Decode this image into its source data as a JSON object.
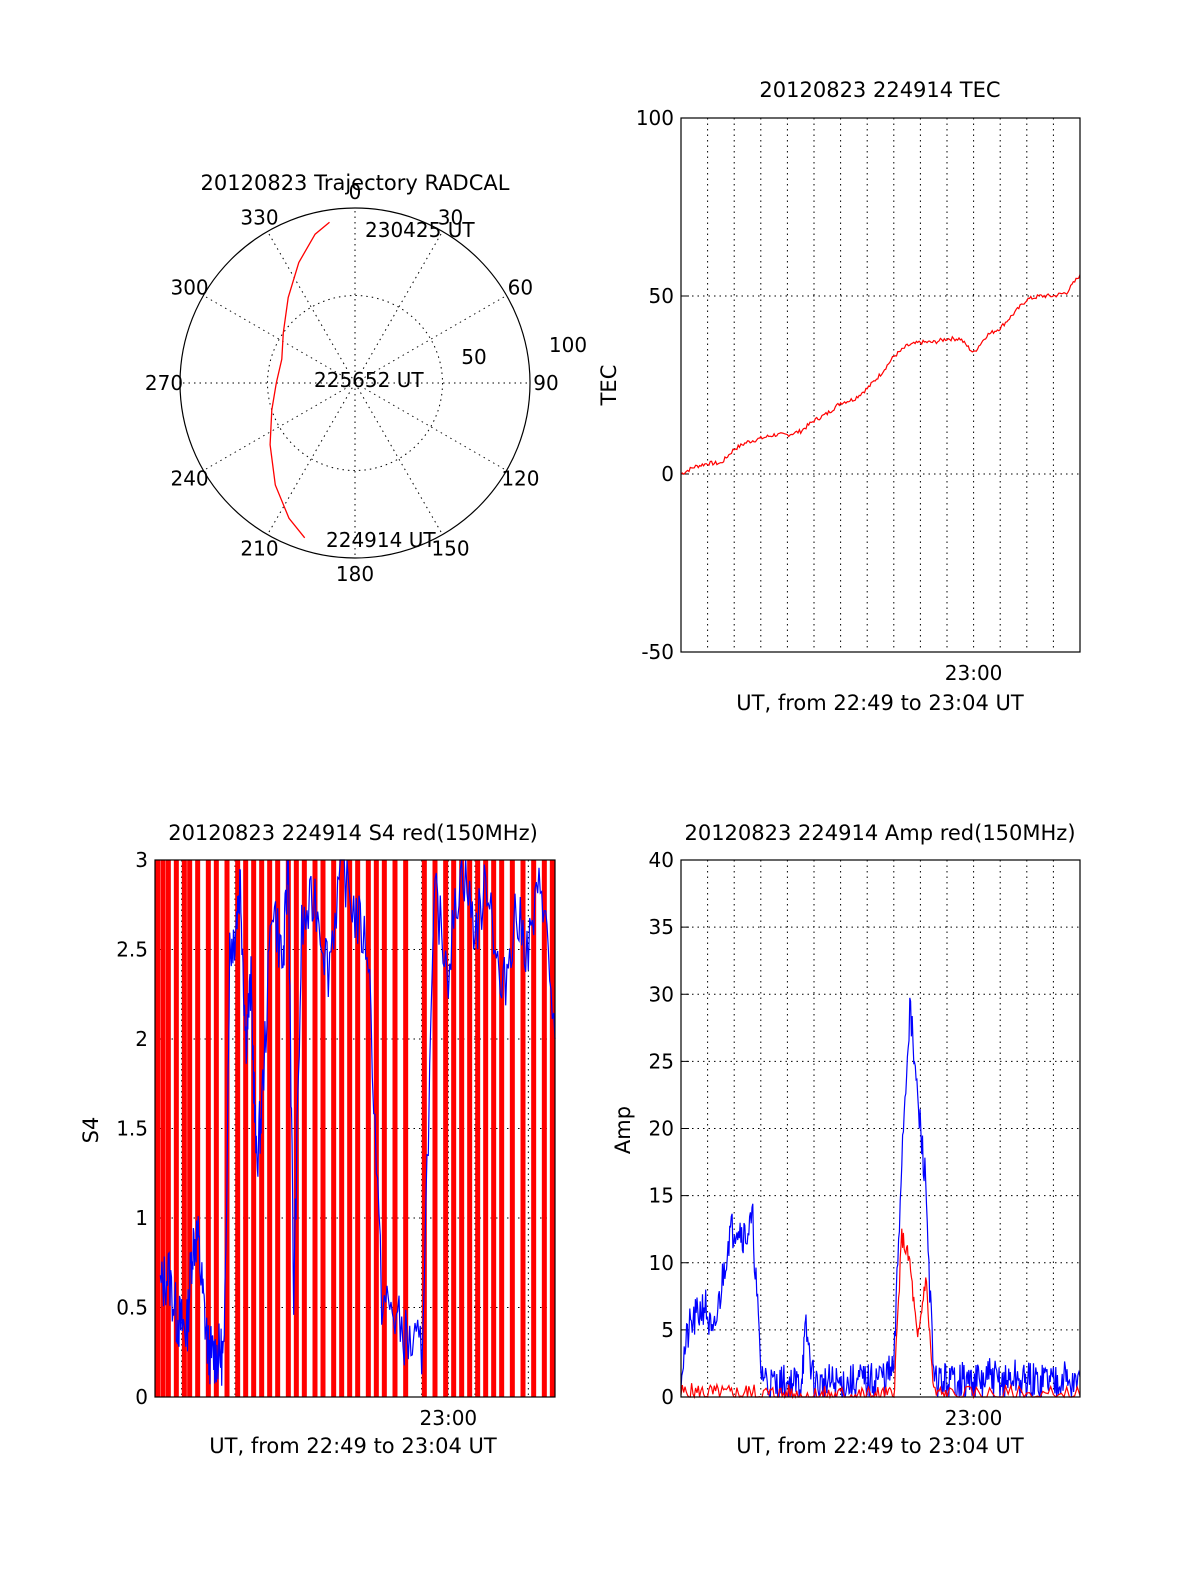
{
  "colors": {
    "red": "#ff0000",
    "blue": "#0000ff",
    "axis": "#000000",
    "background": "#ffffff"
  },
  "chart_data": [
    {
      "type": "polar",
      "title": "20120823 Trajectory RADCAL",
      "angle_labels": [
        "0",
        "30",
        "60",
        "90",
        "120",
        "150",
        "180",
        "210",
        "240",
        "270",
        "300",
        "330"
      ],
      "radius_labels": [
        "50",
        "100"
      ],
      "rlim": [
        0,
        100
      ],
      "grid": true,
      "trajectory_labels": {
        "start": "224914 UT",
        "mid": "225652 UT",
        "end": "230425 UT"
      },
      "series": [
        {
          "color": "red",
          "points": [
            {
              "az": 198,
              "r": 93
            },
            {
              "az": 206,
              "r": 86
            },
            {
              "az": 218,
              "r": 74
            },
            {
              "az": 234,
              "r": 60
            },
            {
              "az": 252,
              "r": 50
            },
            {
              "az": 270,
              "r": 45
            },
            {
              "az": 288,
              "r": 44
            },
            {
              "az": 305,
              "r": 50
            },
            {
              "az": 322,
              "r": 62
            },
            {
              "az": 335,
              "r": 76
            },
            {
              "az": 345,
              "r": 88
            },
            {
              "az": 351,
              "r": 93
            }
          ]
        }
      ]
    },
    {
      "type": "line",
      "title": "20120823 224914 TEC",
      "xlabel": "UT, from 22:49 to 23:04 UT",
      "ylabel": "TEC",
      "xlim": [
        0,
        15
      ],
      "ylim": [
        -50,
        100
      ],
      "yticks": [
        "-50",
        "0",
        "50",
        "100"
      ],
      "xticks": [
        {
          "label": "23:00",
          "at": 11
        }
      ],
      "grid": true,
      "series": [
        {
          "color": "red",
          "x": [
            0,
            0.5,
            1,
            1.5,
            2,
            2.5,
            3,
            3.5,
            4,
            4.5,
            5,
            5.5,
            6,
            6.5,
            7,
            7.5,
            8,
            8.5,
            9,
            9.5,
            10,
            10.5,
            11,
            11.5,
            12,
            12.5,
            13,
            13.5,
            14,
            14.5,
            15
          ],
          "y": [
            0,
            2,
            3,
            3,
            7,
            9,
            10,
            11,
            11,
            12,
            15,
            17,
            20,
            21,
            24,
            28,
            33,
            36,
            37,
            37,
            38,
            38,
            34,
            39,
            41,
            45,
            49,
            50,
            50,
            51,
            56
          ]
        }
      ]
    },
    {
      "type": "line",
      "title": "20120823 224914 S4 red(150MHz)",
      "xlabel": "UT, from 22:49 to 23:04 UT",
      "ylabel": "S4",
      "xlim": [
        0,
        15
      ],
      "ylim": [
        0,
        3
      ],
      "yticks": [
        "0",
        "0.5",
        "1",
        "1.5",
        "2",
        "2.5",
        "3"
      ],
      "xticks": [
        {
          "label": "23:00",
          "at": 11
        }
      ],
      "grid": true,
      "series": [
        {
          "color": "red",
          "name": "red(150MHz)",
          "x": [
            0.1,
            0.3,
            0.5,
            0.8,
            1.1,
            1.3,
            1.6,
            2.0,
            2.3,
            2.7,
            3.1,
            3.4,
            3.7,
            4.0,
            4.3,
            4.6,
            5.0,
            5.3,
            5.6,
            6.0,
            6.3,
            6.7,
            7.0,
            7.3,
            7.6,
            8.0,
            8.3,
            8.6,
            9.0,
            9.4,
            10.1,
            10.5,
            10.9,
            11.2,
            11.5,
            11.8,
            12.1,
            12.4,
            12.7,
            13.0,
            13.4,
            13.8,
            14.2,
            14.6,
            14.9
          ],
          "y": [
            3,
            3,
            3,
            3,
            3,
            3,
            3,
            3,
            3,
            3,
            3,
            3,
            3,
            3,
            3,
            3,
            3,
            3,
            3,
            3,
            3,
            3,
            3,
            3,
            3,
            3,
            3,
            3,
            3,
            3,
            3,
            3,
            3,
            3,
            3,
            3,
            3,
            3,
            3,
            3,
            3,
            3,
            3,
            3,
            3
          ]
        },
        {
          "color": "blue",
          "name": "blue",
          "x": [
            0.2,
            0.5,
            0.8,
            1.0,
            1.2,
            1.4,
            1.6,
            1.8,
            2.0,
            2.2,
            2.4,
            2.6,
            2.8,
            3.0,
            3.2,
            3.4,
            3.6,
            3.8,
            4.0,
            4.4,
            4.8,
            5.0,
            5.2,
            5.5,
            6.0,
            6.5,
            7.0,
            7.5,
            8.0,
            8.5,
            9.0,
            9.5,
            10.0,
            10.5,
            11.0,
            11.5,
            12.0,
            12.5,
            13.0,
            13.5,
            14.0,
            14.5,
            15.0
          ],
          "y": [
            0.6,
            0.7,
            0.45,
            0.4,
            0.38,
            0.85,
            0.9,
            0.55,
            0.25,
            0.23,
            0.24,
            0.23,
            2.5,
            2.6,
            2.9,
            2.0,
            2.3,
            1.3,
            1.6,
            2.8,
            2.4,
            3.0,
            0.55,
            2.6,
            2.8,
            2.4,
            3.0,
            2.7,
            2.5,
            0.55,
            0.45,
            0.3,
            0.25,
            2.8,
            2.4,
            3.0,
            2.6,
            2.9,
            2.2,
            2.7,
            2.5,
            2.9,
            2.0
          ]
        }
      ]
    },
    {
      "type": "line",
      "title": "20120823 224914 Amp red(150MHz)",
      "xlabel": "UT, from 22:49 to 23:04 UT",
      "ylabel": "Amp",
      "xlim": [
        0,
        15
      ],
      "ylim": [
        0,
        40
      ],
      "yticks": [
        "0",
        "5",
        "10",
        "15",
        "20",
        "25",
        "30",
        "35",
        "40"
      ],
      "xticks": [
        {
          "label": "23:00",
          "at": 11
        }
      ],
      "grid": true,
      "series": [
        {
          "color": "blue",
          "name": "blue",
          "x": [
            0,
            0.3,
            0.6,
            0.9,
            1.2,
            1.5,
            1.8,
            2.1,
            2.4,
            2.7,
            3.0,
            3.3,
            3.6,
            3.9,
            4.2,
            4.5,
            4.7,
            5.0,
            5.3,
            5.6,
            5.9,
            6.2,
            6.5,
            6.8,
            7.1,
            7.4,
            7.7,
            8.0,
            8.3,
            8.6,
            8.9,
            9.2,
            9.5,
            9.8,
            10.1,
            10.4,
            10.7,
            11.0,
            11.3,
            11.6,
            11.9,
            12.2,
            12.5,
            12.8,
            13.1,
            13.4,
            13.7,
            14.0,
            14.3,
            14.6,
            15.0
          ],
          "y": [
            2,
            5,
            6,
            7,
            4,
            8,
            12,
            13,
            12,
            13,
            2,
            1,
            0.8,
            1,
            0.9,
            1,
            5,
            1,
            0.8,
            1,
            0.9,
            1,
            1,
            1.2,
            1,
            1.5,
            1.5,
            2,
            18,
            29,
            22,
            16,
            1,
            1.2,
            1,
            1.5,
            1,
            1.2,
            1,
            1.5,
            1.2,
            1,
            1.5,
            1,
            1.2,
            1,
            1.5,
            1.2,
            1.8,
            1,
            1.5
          ]
        },
        {
          "color": "red",
          "name": "red(150MHz)",
          "x": [
            0,
            0.5,
            1,
            1.5,
            2,
            2.5,
            3,
            3.5,
            4,
            4.5,
            5,
            5.5,
            6,
            6.5,
            7,
            7.5,
            8,
            8.3,
            8.6,
            8.9,
            9.2,
            9.5,
            10,
            11,
            12,
            13,
            14,
            15
          ],
          "y": [
            0.3,
            0.3,
            0.3,
            0.2,
            0.2,
            0.3,
            0.2,
            0.2,
            0.2,
            0.1,
            0.1,
            0.1,
            0.1,
            0.1,
            0.1,
            0.1,
            0.1,
            12,
            10,
            4,
            9,
            0.3,
            0.1,
            0.1,
            0.1,
            0.1,
            0.1,
            0.1
          ]
        }
      ]
    }
  ]
}
